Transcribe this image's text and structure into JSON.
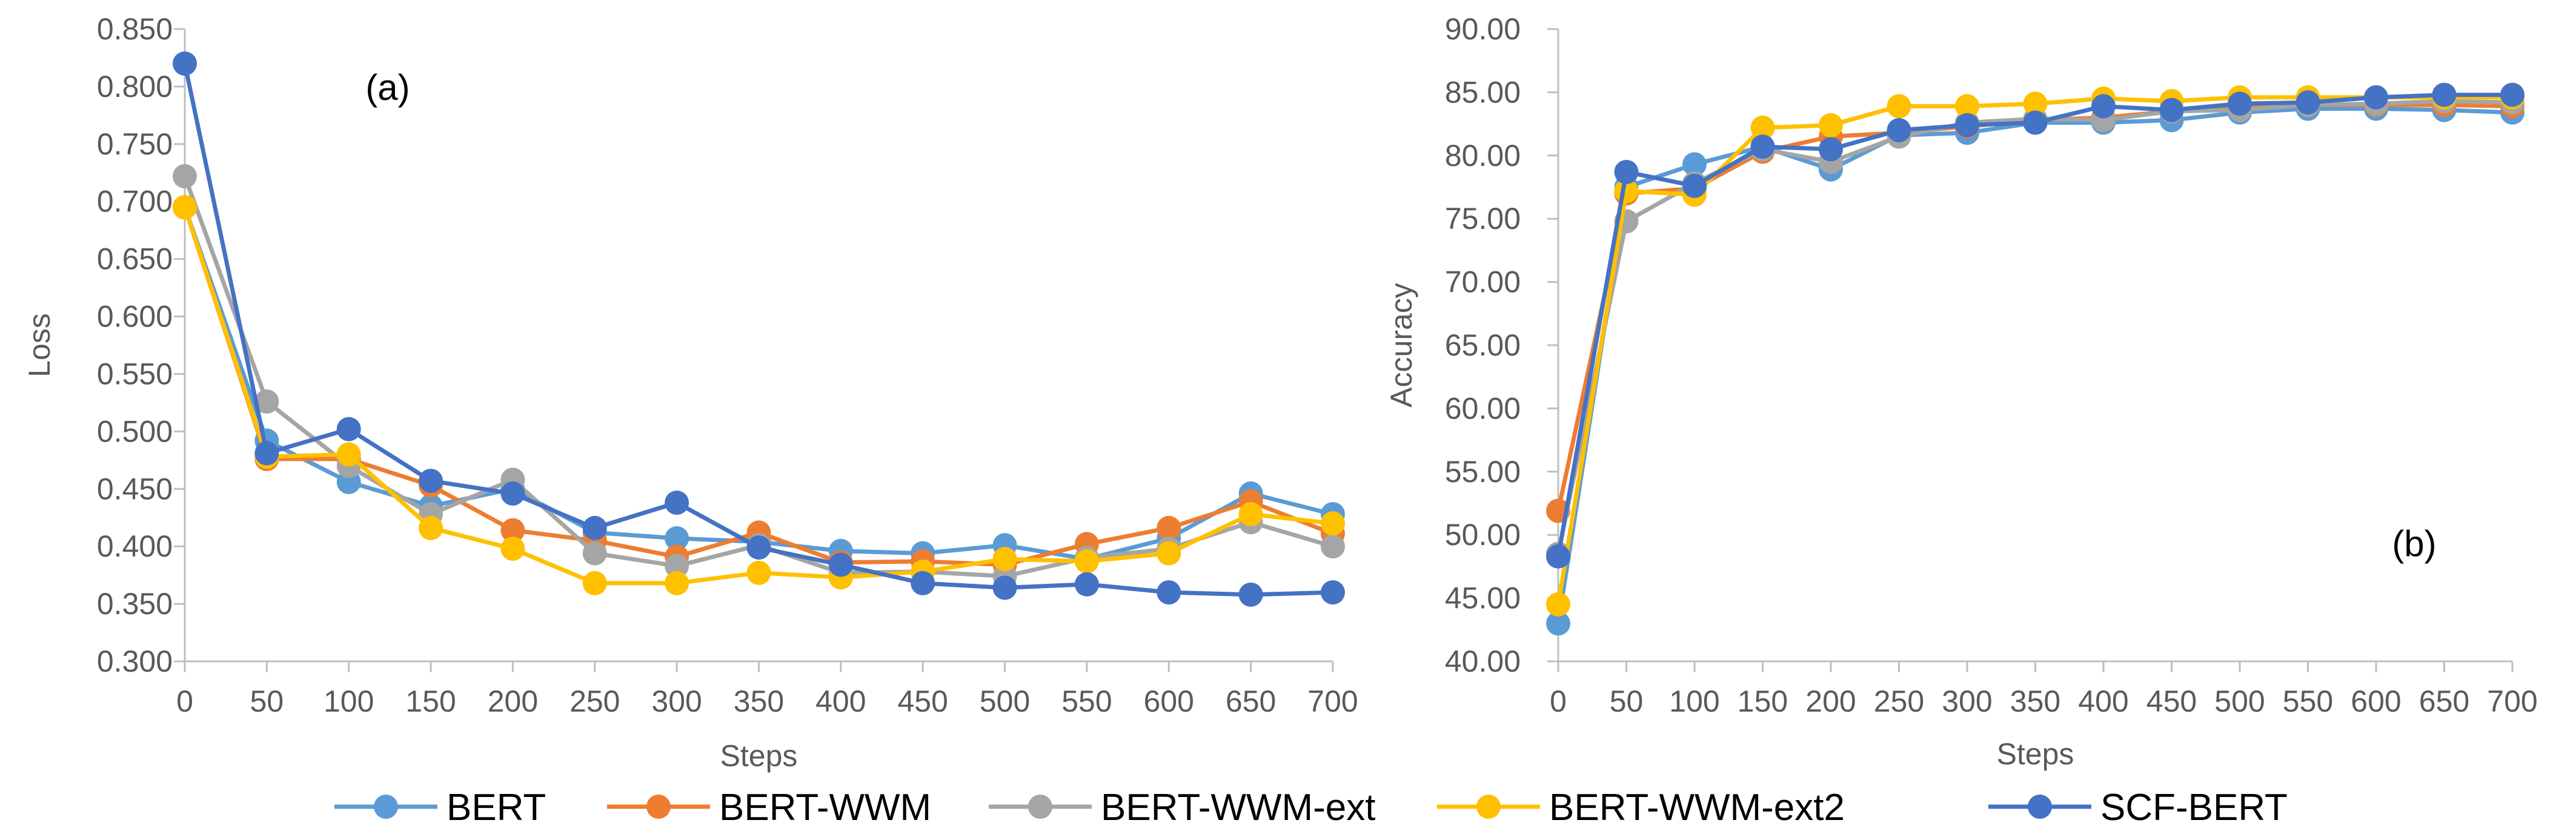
{
  "chart_data": [
    {
      "type": "line",
      "panel_label": "(a)",
      "xlabel": "Steps",
      "ylabel": "Loss",
      "x": [
        0,
        50,
        100,
        150,
        200,
        250,
        300,
        350,
        400,
        450,
        500,
        550,
        600,
        650,
        700
      ],
      "ylim": [
        0.3,
        0.85
      ],
      "yticks": [
        "0.300",
        "0.350",
        "0.400",
        "0.450",
        "0.500",
        "0.550",
        "0.600",
        "0.650",
        "0.700",
        "0.750",
        "0.800",
        "0.850"
      ],
      "grid": false,
      "series": [
        {
          "name": "BERT",
          "color": "#5B9BD5",
          "values": [
            0.695,
            0.492,
            0.456,
            0.435,
            0.45,
            0.412,
            0.407,
            0.404,
            0.396,
            0.394,
            0.401,
            0.389,
            0.407,
            0.446,
            0.428
          ]
        },
        {
          "name": "BERT-WWM",
          "color": "#ED7D31",
          "values": [
            0.695,
            0.476,
            0.476,
            0.453,
            0.414,
            0.405,
            0.391,
            0.412,
            0.386,
            0.387,
            0.384,
            0.402,
            0.416,
            0.439,
            0.411
          ]
        },
        {
          "name": "BERT-WWM-ext",
          "color": "#A5A5A5",
          "values": [
            0.722,
            0.526,
            0.47,
            0.428,
            0.458,
            0.394,
            0.383,
            0.401,
            0.377,
            0.378,
            0.374,
            0.39,
            0.398,
            0.421,
            0.4
          ]
        },
        {
          "name": "BERT-WWM-ext2",
          "color": "#FFC000",
          "values": [
            0.695,
            0.478,
            0.48,
            0.416,
            0.398,
            0.368,
            0.368,
            0.377,
            0.373,
            0.378,
            0.389,
            0.387,
            0.394,
            0.428,
            0.42
          ]
        },
        {
          "name": "SCF-BERT",
          "color": "#4472C4",
          "values": [
            0.82,
            0.481,
            0.502,
            0.457,
            0.446,
            0.416,
            0.438,
            0.399,
            0.384,
            0.368,
            0.364,
            0.367,
            0.36,
            0.358,
            0.36
          ]
        }
      ]
    },
    {
      "type": "line",
      "panel_label": "(b)",
      "xlabel": "Steps",
      "ylabel": "Accuracy",
      "x": [
        0,
        50,
        100,
        150,
        200,
        250,
        300,
        350,
        400,
        450,
        500,
        550,
        600,
        650,
        700
      ],
      "ylim": [
        40,
        90
      ],
      "yticks": [
        "40.00",
        "45.00",
        "50.00",
        "55.00",
        "60.00",
        "65.00",
        "70.00",
        "75.00",
        "80.00",
        "85.00",
        "90.00"
      ],
      "grid": false,
      "series": [
        {
          "name": "BERT",
          "color": "#5B9BD5",
          "values": [
            43.0,
            77.5,
            79.3,
            80.7,
            78.9,
            81.6,
            81.8,
            82.6,
            82.6,
            82.8,
            83.4,
            83.7,
            83.7,
            83.6,
            83.4
          ]
        },
        {
          "name": "BERT-WWM",
          "color": "#ED7D31",
          "values": [
            51.9,
            77.0,
            77.4,
            80.3,
            81.5,
            81.8,
            82.3,
            82.8,
            83.0,
            83.5,
            83.8,
            84.0,
            84.0,
            84.0,
            83.9
          ]
        },
        {
          "name": "BERT-WWM-ext",
          "color": "#A5A5A5",
          "values": [
            48.5,
            74.8,
            77.8,
            80.5,
            79.5,
            81.5,
            82.6,
            82.9,
            82.8,
            83.5,
            83.6,
            84.0,
            84.1,
            84.3,
            84.2
          ]
        },
        {
          "name": "BERT-WWM-ext2",
          "color": "#FFC000",
          "values": [
            44.5,
            77.2,
            76.9,
            82.2,
            82.4,
            83.9,
            83.9,
            84.1,
            84.5,
            84.3,
            84.6,
            84.6,
            84.6,
            84.6,
            84.6
          ]
        },
        {
          "name": "SCF-BERT",
          "color": "#4472C4",
          "values": [
            48.3,
            78.7,
            77.6,
            80.7,
            80.5,
            82.0,
            82.4,
            82.6,
            83.9,
            83.6,
            84.1,
            84.2,
            84.6,
            84.8,
            84.8
          ]
        }
      ]
    }
  ],
  "legend": {
    "placement": "bottom",
    "items": [
      "BERT",
      "BERT-WWM",
      "BERT-WWM-ext",
      "BERT-WWM-ext2",
      "SCF-BERT"
    ]
  }
}
